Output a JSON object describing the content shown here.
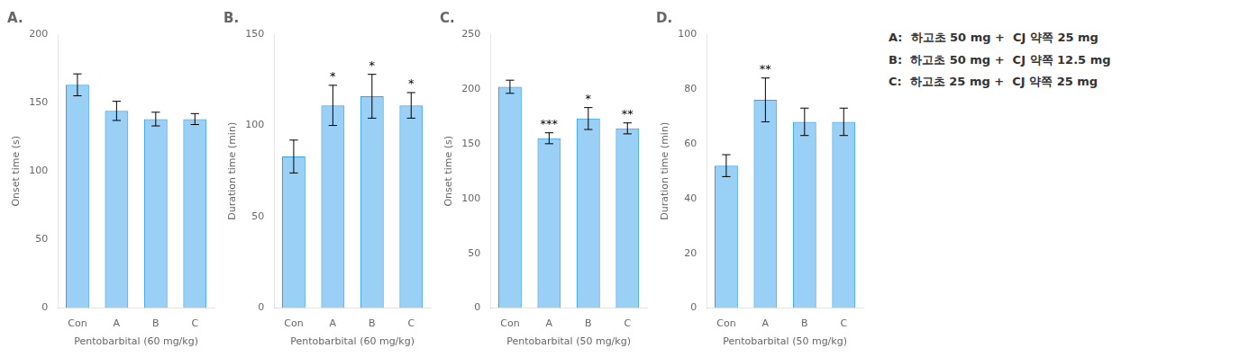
{
  "chart_data": [
    {
      "type": "bar",
      "title": "A.",
      "categories": [
        "Con",
        "A",
        "B",
        "C"
      ],
      "values": [
        163,
        144,
        138,
        138
      ],
      "errors": [
        8,
        7,
        5,
        4
      ],
      "ylabel": "Onset time (s)",
      "xlabel": "Pentobarbital (60 mg/kg)",
      "ylim": [
        0,
        200
      ],
      "yticks": [
        0,
        50,
        100,
        150,
        200
      ],
      "grid": false
    },
    {
      "type": "bar",
      "title": "B.",
      "categories": [
        "Con",
        "A",
        "B",
        "C"
      ],
      "values": [
        83,
        111,
        116,
        111
      ],
      "errors": [
        9,
        11,
        12,
        7
      ],
      "ylabel": "Duration time (min)",
      "xlabel": "Pentobarbital (60 mg/kg)",
      "ylim": [
        0,
        150
      ],
      "yticks": [
        0,
        50,
        100,
        150
      ],
      "grid": false,
      "annotations": [
        {
          "category": "A",
          "text": "*"
        },
        {
          "category": "B",
          "text": "*"
        },
        {
          "category": "C",
          "text": "*"
        }
      ]
    },
    {
      "type": "bar",
      "title": "C.",
      "categories": [
        "Con",
        "A",
        "B",
        "C"
      ],
      "values": [
        202,
        155,
        173,
        164
      ],
      "errors": [
        6,
        5,
        10,
        5
      ],
      "ylabel": "Onset time (s)",
      "xlabel": "Pentobarbital (50 mg/kg)",
      "ylim": [
        0,
        250
      ],
      "yticks": [
        0,
        50,
        100,
        150,
        200,
        250
      ],
      "grid": false,
      "annotations": [
        {
          "category": "A",
          "text": "***"
        },
        {
          "category": "B",
          "text": "*"
        },
        {
          "category": "C",
          "text": "**"
        }
      ]
    },
    {
      "type": "bar",
      "title": "D.",
      "categories": [
        "Con",
        "A",
        "B",
        "C"
      ],
      "values": [
        52,
        76,
        68,
        68
      ],
      "errors": [
        4,
        8,
        5,
        5
      ],
      "ylabel": "Duration time (min)",
      "xlabel": "Pentobarbital (50 mg/kg)",
      "ylim": [
        0,
        100
      ],
      "yticks": [
        0,
        20,
        40,
        60,
        80,
        100
      ],
      "grid": false,
      "annotations": [
        {
          "category": "A",
          "text": "**"
        }
      ]
    }
  ],
  "annotations": [
    "A:  하고초 50 mg +  CJ 약쪽 25 mg",
    "B:  하고초 50 mg +  CJ 약쪽 12.5 mg",
    "C:  하고초 25 mg +  CJ 약쪽 25 mg"
  ]
}
